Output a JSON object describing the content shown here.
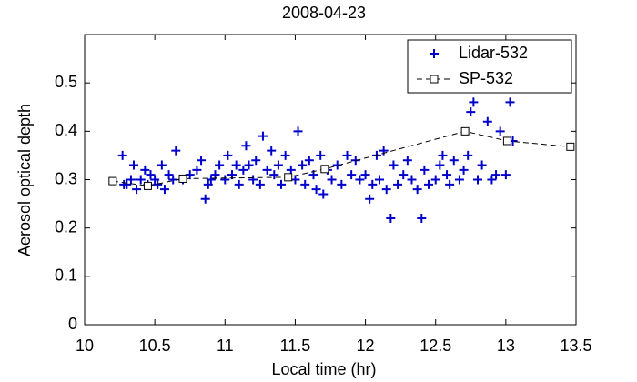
{
  "chart_data": {
    "type": "scatter",
    "title": "2008-04-23",
    "xlabel": "Local time (hr)",
    "ylabel": "Aerosol optical depth",
    "xlim": [
      10,
      13.5
    ],
    "ylim": [
      0,
      0.6
    ],
    "xticks": [
      10,
      10.5,
      11,
      11.5,
      12,
      12.5,
      13,
      13.5
    ],
    "yticks": [
      0,
      0.1,
      0.2,
      0.3,
      0.4,
      0.5
    ],
    "legend": "northeast",
    "series": [
      {
        "name": "Lidar-532",
        "color": "#0000cc",
        "marker": "plus",
        "line": "none",
        "x": [
          10.27,
          10.28,
          10.3,
          10.33,
          10.35,
          10.37,
          10.4,
          10.43,
          10.45,
          10.47,
          10.5,
          10.52,
          10.55,
          10.57,
          10.6,
          10.63,
          10.65,
          10.7,
          10.75,
          10.8,
          10.83,
          10.86,
          10.88,
          10.9,
          10.93,
          10.96,
          11.0,
          11.02,
          11.05,
          11.08,
          11.1,
          11.13,
          11.15,
          11.17,
          11.2,
          11.22,
          11.25,
          11.27,
          11.3,
          11.33,
          11.35,
          11.38,
          11.4,
          11.43,
          11.47,
          11.5,
          11.52,
          11.55,
          11.57,
          11.6,
          11.63,
          11.65,
          11.68,
          11.7,
          11.73,
          11.76,
          11.8,
          11.83,
          11.87,
          11.9,
          11.93,
          11.96,
          12.0,
          12.03,
          12.05,
          12.08,
          12.1,
          12.13,
          12.15,
          12.18,
          12.2,
          12.23,
          12.27,
          12.3,
          12.33,
          12.37,
          12.4,
          12.42,
          12.45,
          12.5,
          12.53,
          12.55,
          12.58,
          12.6,
          12.63,
          12.67,
          12.7,
          12.73,
          12.75,
          12.77,
          12.8,
          12.83,
          12.87,
          12.9,
          12.93,
          12.96,
          13.0,
          13.03,
          13.05
        ],
        "values": [
          0.35,
          0.29,
          0.29,
          0.3,
          0.33,
          0.28,
          0.3,
          0.32,
          0.29,
          0.31,
          0.3,
          0.29,
          0.33,
          0.28,
          0.31,
          0.3,
          0.36,
          0.3,
          0.31,
          0.32,
          0.34,
          0.26,
          0.29,
          0.3,
          0.31,
          0.33,
          0.3,
          0.35,
          0.31,
          0.33,
          0.29,
          0.32,
          0.37,
          0.33,
          0.3,
          0.34,
          0.29,
          0.39,
          0.32,
          0.36,
          0.31,
          0.33,
          0.29,
          0.35,
          0.32,
          0.3,
          0.4,
          0.33,
          0.29,
          0.34,
          0.31,
          0.28,
          0.35,
          0.27,
          0.32,
          0.3,
          0.33,
          0.29,
          0.35,
          0.31,
          0.34,
          0.3,
          0.31,
          0.26,
          0.29,
          0.35,
          0.3,
          0.36,
          0.28,
          0.22,
          0.33,
          0.29,
          0.31,
          0.34,
          0.3,
          0.28,
          0.22,
          0.32,
          0.29,
          0.3,
          0.33,
          0.35,
          0.31,
          0.29,
          0.34,
          0.3,
          0.32,
          0.35,
          0.44,
          0.46,
          0.3,
          0.33,
          0.42,
          0.3,
          0.31,
          0.4,
          0.31,
          0.46,
          0.38
        ]
      },
      {
        "name": "SP-532",
        "color": "#000000",
        "marker": "square",
        "line": "dashed",
        "x": [
          10.2,
          10.45,
          10.7,
          11.45,
          11.71,
          12.71,
          13.01,
          13.46
        ],
        "values": [
          0.297,
          0.287,
          0.302,
          0.305,
          0.322,
          0.4,
          0.38,
          0.368
        ]
      }
    ]
  }
}
